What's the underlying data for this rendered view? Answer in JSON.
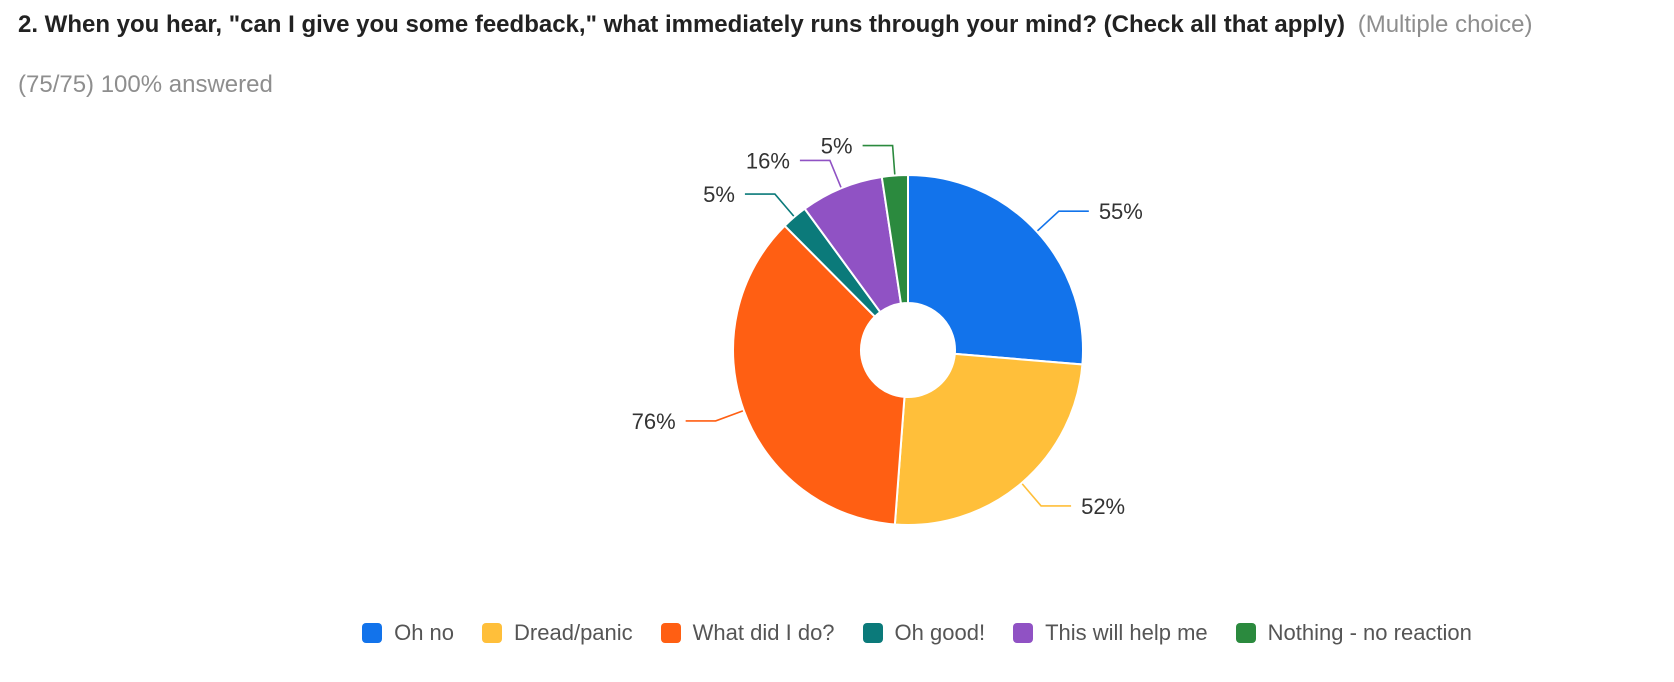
{
  "question": {
    "title": "2. When you hear, \"can I give you some feedback,\" what immediately runs through your mind?  (Check all that apply)",
    "type_label": "(Multiple choice)",
    "response_count": "(75/75) 100% answered"
  },
  "chart_data": {
    "type": "pie",
    "style": "donut",
    "categories": [
      "Oh no",
      "Dread/panic",
      "What did I do?",
      "Oh good!",
      "This will help me",
      "Nothing - no reaction"
    ],
    "values": [
      55,
      52,
      76,
      5,
      16,
      5
    ],
    "labels": [
      "55%",
      "52%",
      "76%",
      "5%",
      "16%",
      "5%"
    ],
    "colors": [
      "#1273eb",
      "#ffbf3a",
      "#ff5f13",
      "#0b7a7a",
      "#9052c4",
      "#2b8a3e"
    ],
    "legend_position": "bottom"
  }
}
